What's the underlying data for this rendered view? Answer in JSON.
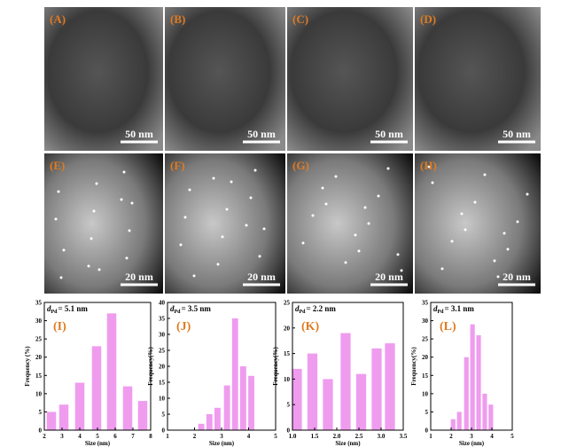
{
  "images": [
    {
      "label": "(A)",
      "scale_bar": "50 nm"
    },
    {
      "label": "(B)",
      "scale_bar": "50 nm"
    },
    {
      "label": "(C)",
      "scale_bar": "50 nm"
    },
    {
      "label": "(D)",
      "scale_bar": "50 nm"
    },
    {
      "label": "(E)",
      "scale_bar": "20 nm"
    },
    {
      "label": "(F)",
      "scale_bar": "20 nm"
    },
    {
      "label": "(G)",
      "scale_bar": "20 nm"
    },
    {
      "label": "(H)",
      "scale_bar": "20 nm"
    }
  ],
  "chart_data": [
    {
      "type": "bar",
      "panel_label": "(I)",
      "annotation": {
        "symbol": "d",
        "subscript": "Pd",
        "text": "= 5.1 nm"
      },
      "x_label": "Size (nm)",
      "y_label": "Frequency (%)",
      "color": "#ef9cef",
      "x": [
        2.4,
        3.1,
        4.0,
        4.95,
        5.8,
        6.7,
        7.55
      ],
      "values": [
        5,
        7,
        13,
        23,
        32,
        12,
        8
      ],
      "xlim": [
        2,
        8
      ],
      "xticks": [
        2,
        3,
        4,
        5,
        6,
        7,
        8
      ],
      "ylim": [
        0,
        35
      ],
      "yticks": [
        0,
        5,
        10,
        15,
        20,
        25,
        30,
        35
      ]
    },
    {
      "type": "bar",
      "panel_label": "(J)",
      "annotation": {
        "symbol": "d",
        "subscript": "Pd",
        "text": "= 3.5 nm"
      },
      "x_label": "Size (nm)",
      "y_label": "Frequency(%)",
      "color": "#ef9cef",
      "x": [
        2.25,
        2.55,
        2.85,
        3.2,
        3.5,
        3.8,
        4.1
      ],
      "values": [
        2,
        5,
        7,
        14,
        35,
        20,
        17
      ],
      "xlim": [
        1,
        5
      ],
      "xticks": [
        1,
        2,
        3,
        4,
        5
      ],
      "ylim": [
        0,
        40
      ],
      "yticks": [
        0,
        5,
        10,
        15,
        20,
        25,
        30,
        35,
        40
      ]
    },
    {
      "type": "bar",
      "panel_label": "(K)",
      "annotation": {
        "symbol": "d",
        "subscript": "Pd",
        "text": "= 2.2 nm"
      },
      "x_label": "Size (nm)",
      "y_label": "Frequency(%)",
      "color": "#ef9cef",
      "x": [
        1.1,
        1.45,
        1.8,
        2.2,
        2.55,
        2.9,
        3.2
      ],
      "values": [
        12,
        15,
        10,
        19,
        11,
        16,
        17
      ],
      "xlim": [
        1,
        3.5
      ],
      "xticks": [
        {
          "value": 1,
          "label": "1.0"
        },
        1.5,
        {
          "value": 2,
          "label": "2.0"
        },
        2.5,
        {
          "value": 3,
          "label": "3.0"
        },
        3.5
      ],
      "ylim": [
        0,
        25
      ],
      "yticks": [
        0,
        5,
        10,
        15,
        20,
        25
      ]
    },
    {
      "type": "bar",
      "panel_label": "(L)",
      "annotation": {
        "symbol": "d",
        "subscript": "Pd",
        "text": "= 3.1 nm"
      },
      "x_label": "Size (nm)",
      "y_label": "Frequency(%)",
      "color": "#ef9cef",
      "x": [
        2.1,
        2.4,
        2.75,
        3.05,
        3.35,
        3.65,
        3.95
      ],
      "values": [
        3,
        5,
        20,
        29,
        26,
        10,
        7
      ],
      "xlim": [
        1,
        5
      ],
      "xticks": [
        1,
        2,
        3,
        4,
        5
      ],
      "ylim": [
        0,
        35
      ],
      "yticks": [
        0,
        5,
        10,
        15,
        20,
        25,
        30,
        35
      ]
    }
  ]
}
